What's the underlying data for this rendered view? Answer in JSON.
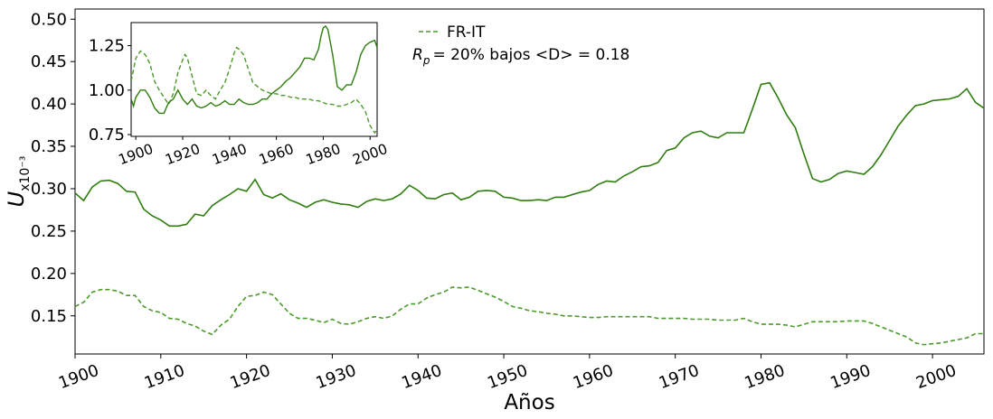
{
  "chart_data": [
    {
      "type": "line",
      "xlabel": "Años",
      "ylabel": "U",
      "ylabel_sub": "x10⁻³",
      "xlim": [
        1900,
        2006
      ],
      "ylim": [
        0.105,
        0.512
      ],
      "xticks": [
        1900,
        1910,
        1920,
        1930,
        1940,
        1950,
        1960,
        1970,
        1980,
        1990,
        2000
      ],
      "yticks": [
        "0.15",
        "0.20",
        "0.25",
        "0.30",
        "0.35",
        "0.40",
        "0.45",
        "0.50"
      ],
      "ytick_values": [
        0.15,
        0.2,
        0.25,
        0.3,
        0.35,
        0.4,
        0.45,
        0.5
      ],
      "grid": false,
      "legend_position": "top-center",
      "legend_label": "FR-IT",
      "annotation": "= 20% bajos <D> = 0.18",
      "annotation_prefix": "R",
      "annotation_sub": "p",
      "series": [
        {
          "name": "FR-IT",
          "style": "dashed",
          "color": "#4c9a2a",
          "x": [
            1900,
            1901,
            1902,
            1903,
            1904,
            1905,
            1906,
            1907,
            1908,
            1909,
            1910,
            1911,
            1912,
            1913,
            1914,
            1915,
            1916,
            1917,
            1918,
            1919,
            1920,
            1921,
            1922,
            1923,
            1924,
            1925,
            1926,
            1927,
            1928,
            1929,
            1930,
            1931,
            1932,
            1933,
            1934,
            1935,
            1936,
            1937,
            1938,
            1939,
            1940,
            1941,
            1942,
            1943,
            1944,
            1945,
            1946,
            1947,
            1948,
            1949,
            1950,
            1951,
            1952,
            1953,
            1954,
            1955,
            1956,
            1957,
            1958,
            1959,
            1960,
            1961,
            1962,
            1963,
            1964,
            1965,
            1966,
            1967,
            1968,
            1969,
            1970,
            1971,
            1972,
            1973,
            1974,
            1975,
            1976,
            1977,
            1978,
            1979,
            1980,
            1981,
            1982,
            1983,
            1984,
            1985,
            1986,
            1987,
            1988,
            1989,
            1990,
            1991,
            1992,
            1993,
            1994,
            1995,
            1996,
            1997,
            1998,
            1999,
            2000,
            2001,
            2002,
            2003,
            2004,
            2005,
            2006
          ],
          "values": [
            0.161,
            0.166,
            0.178,
            0.181,
            0.181,
            0.179,
            0.174,
            0.174,
            0.161,
            0.156,
            0.154,
            0.147,
            0.146,
            0.141,
            0.138,
            0.132,
            0.128,
            0.139,
            0.146,
            0.161,
            0.173,
            0.174,
            0.178,
            0.175,
            0.164,
            0.153,
            0.147,
            0.147,
            0.145,
            0.142,
            0.146,
            0.141,
            0.14,
            0.143,
            0.147,
            0.149,
            0.147,
            0.15,
            0.158,
            0.164,
            0.164,
            0.171,
            0.175,
            0.178,
            0.184,
            0.183,
            0.184,
            0.18,
            0.176,
            0.172,
            0.167,
            0.161,
            0.159,
            0.156,
            0.155,
            0.153,
            0.152,
            0.15,
            0.15,
            0.149,
            0.148,
            0.148,
            0.149,
            0.149,
            0.149,
            0.149,
            0.149,
            0.149,
            0.147,
            0.147,
            0.147,
            0.147,
            0.146,
            0.146,
            0.146,
            0.145,
            0.145,
            0.145,
            0.147,
            0.143,
            0.14,
            0.14,
            0.14,
            0.139,
            0.137,
            0.14,
            0.143,
            0.143,
            0.143,
            0.143,
            0.144,
            0.144,
            0.144,
            0.141,
            0.137,
            0.133,
            0.129,
            0.125,
            0.118,
            0.116,
            0.117,
            0.118,
            0.12,
            0.122,
            0.124,
            0.129,
            0.129
          ]
        },
        {
          "style": "solid",
          "color": "#2f7d0f",
          "x": [
            1900,
            1901,
            1902,
            1903,
            1904,
            1905,
            1906,
            1907,
            1908,
            1909,
            1910,
            1911,
            1912,
            1913,
            1914,
            1915,
            1916,
            1917,
            1918,
            1919,
            1920,
            1921,
            1922,
            1923,
            1924,
            1925,
            1926,
            1927,
            1928,
            1929,
            1930,
            1931,
            1932,
            1933,
            1934,
            1935,
            1936,
            1937,
            1938,
            1939,
            1940,
            1941,
            1942,
            1943,
            1944,
            1945,
            1946,
            1947,
            1948,
            1949,
            1950,
            1951,
            1952,
            1953,
            1954,
            1955,
            1956,
            1957,
            1958,
            1959,
            1960,
            1961,
            1962,
            1963,
            1964,
            1965,
            1966,
            1967,
            1968,
            1969,
            1970,
            1971,
            1972,
            1973,
            1974,
            1975,
            1976,
            1977,
            1978,
            1979,
            1980,
            1981,
            1982,
            1983,
            1984,
            1985,
            1986,
            1987,
            1988,
            1989,
            1990,
            1991,
            1992,
            1993,
            1994,
            1995,
            1996,
            1997,
            1998,
            1999,
            2000,
            2001,
            2002,
            2003,
            2004,
            2005,
            2006
          ],
          "values": [
            0.295,
            0.286,
            0.302,
            0.309,
            0.31,
            0.306,
            0.297,
            0.296,
            0.276,
            0.268,
            0.263,
            0.256,
            0.256,
            0.258,
            0.27,
            0.268,
            0.28,
            0.287,
            0.293,
            0.3,
            0.297,
            0.311,
            0.293,
            0.289,
            0.294,
            0.287,
            0.283,
            0.278,
            0.284,
            0.287,
            0.284,
            0.282,
            0.281,
            0.278,
            0.285,
            0.288,
            0.286,
            0.288,
            0.294,
            0.304,
            0.298,
            0.289,
            0.288,
            0.293,
            0.295,
            0.287,
            0.29,
            0.297,
            0.298,
            0.297,
            0.29,
            0.289,
            0.286,
            0.286,
            0.287,
            0.286,
            0.29,
            0.29,
            0.293,
            0.296,
            0.298,
            0.305,
            0.309,
            0.308,
            0.315,
            0.32,
            0.326,
            0.327,
            0.331,
            0.345,
            0.348,
            0.36,
            0.366,
            0.368,
            0.362,
            0.36,
            0.366,
            0.366,
            0.366,
            0.394,
            0.423,
            0.425,
            0.407,
            0.387,
            0.372,
            0.341,
            0.312,
            0.308,
            0.311,
            0.318,
            0.321,
            0.319,
            0.317,
            0.326,
            0.34,
            0.357,
            0.374,
            0.387,
            0.398,
            0.4,
            0.404,
            0.405,
            0.406,
            0.409,
            0.418,
            0.402,
            0.395
          ]
        }
      ]
    },
    {
      "type": "line",
      "role": "inset",
      "xlim": [
        1898,
        2003
      ],
      "ylim": [
        0.74,
        1.38
      ],
      "xticks": [
        1900,
        1920,
        1940,
        1960,
        1980,
        2000
      ],
      "yticks": [
        "0.75",
        "1.00",
        "1.25"
      ],
      "ytick_values": [
        0.75,
        1.0,
        1.25
      ],
      "series": [
        {
          "style": "dashed",
          "color": "#4c9a2a",
          "x": [
            1898,
            1900,
            1902,
            1904,
            1906,
            1908,
            1910,
            1912,
            1914,
            1916,
            1918,
            1920,
            1921,
            1922,
            1924,
            1926,
            1928,
            1930,
            1932,
            1934,
            1936,
            1938,
            1940,
            1942,
            1943,
            1944,
            1946,
            1948,
            1950,
            1952,
            1954,
            1956,
            1958,
            1960,
            1962,
            1964,
            1966,
            1968,
            1970,
            1972,
            1974,
            1976,
            1978,
            1980,
            1982,
            1984,
            1986,
            1988,
            1990,
            1992,
            1994,
            1996,
            1998,
            2000,
            2002,
            2003
          ],
          "values": [
            1.05,
            1.18,
            1.22,
            1.2,
            1.15,
            1.05,
            1.0,
            0.96,
            0.92,
            0.98,
            1.1,
            1.17,
            1.2,
            1.18,
            1.08,
            0.98,
            0.97,
            1.0,
            0.97,
            0.95,
            1.0,
            1.04,
            1.12,
            1.21,
            1.24,
            1.23,
            1.2,
            1.12,
            1.04,
            1.02,
            1.0,
            0.99,
            0.98,
            0.98,
            0.97,
            0.97,
            0.96,
            0.96,
            0.95,
            0.95,
            0.95,
            0.94,
            0.94,
            0.93,
            0.92,
            0.92,
            0.91,
            0.91,
            0.92,
            0.93,
            0.95,
            0.92,
            0.88,
            0.8,
            0.76,
            0.78
          ]
        },
        {
          "style": "solid",
          "color": "#2f7d0f",
          "x": [
            1898,
            1899,
            1900,
            1902,
            1904,
            1906,
            1908,
            1910,
            1912,
            1914,
            1916,
            1918,
            1920,
            1922,
            1924,
            1926,
            1928,
            1930,
            1932,
            1934,
            1936,
            1938,
            1940,
            1942,
            1944,
            1946,
            1948,
            1950,
            1952,
            1954,
            1956,
            1958,
            1960,
            1962,
            1964,
            1966,
            1968,
            1970,
            1972,
            1974,
            1976,
            1978,
            1979,
            1980,
            1981,
            1982,
            1984,
            1986,
            1988,
            1990,
            1992,
            1994,
            1996,
            1998,
            2000,
            2002,
            2003
          ],
          "values": [
            0.95,
            0.91,
            0.96,
            1.0,
            1.0,
            0.96,
            0.9,
            0.87,
            0.87,
            0.93,
            0.95,
            1.0,
            0.95,
            0.92,
            0.95,
            0.91,
            0.9,
            0.91,
            0.93,
            0.91,
            0.92,
            0.94,
            0.92,
            0.92,
            0.95,
            0.93,
            0.92,
            0.92,
            0.93,
            0.95,
            0.95,
            0.98,
            1.0,
            1.02,
            1.05,
            1.07,
            1.1,
            1.13,
            1.18,
            1.18,
            1.17,
            1.23,
            1.3,
            1.35,
            1.36,
            1.34,
            1.2,
            1.02,
            1.0,
            1.03,
            1.03,
            1.1,
            1.2,
            1.25,
            1.27,
            1.28,
            1.24
          ]
        }
      ]
    }
  ]
}
